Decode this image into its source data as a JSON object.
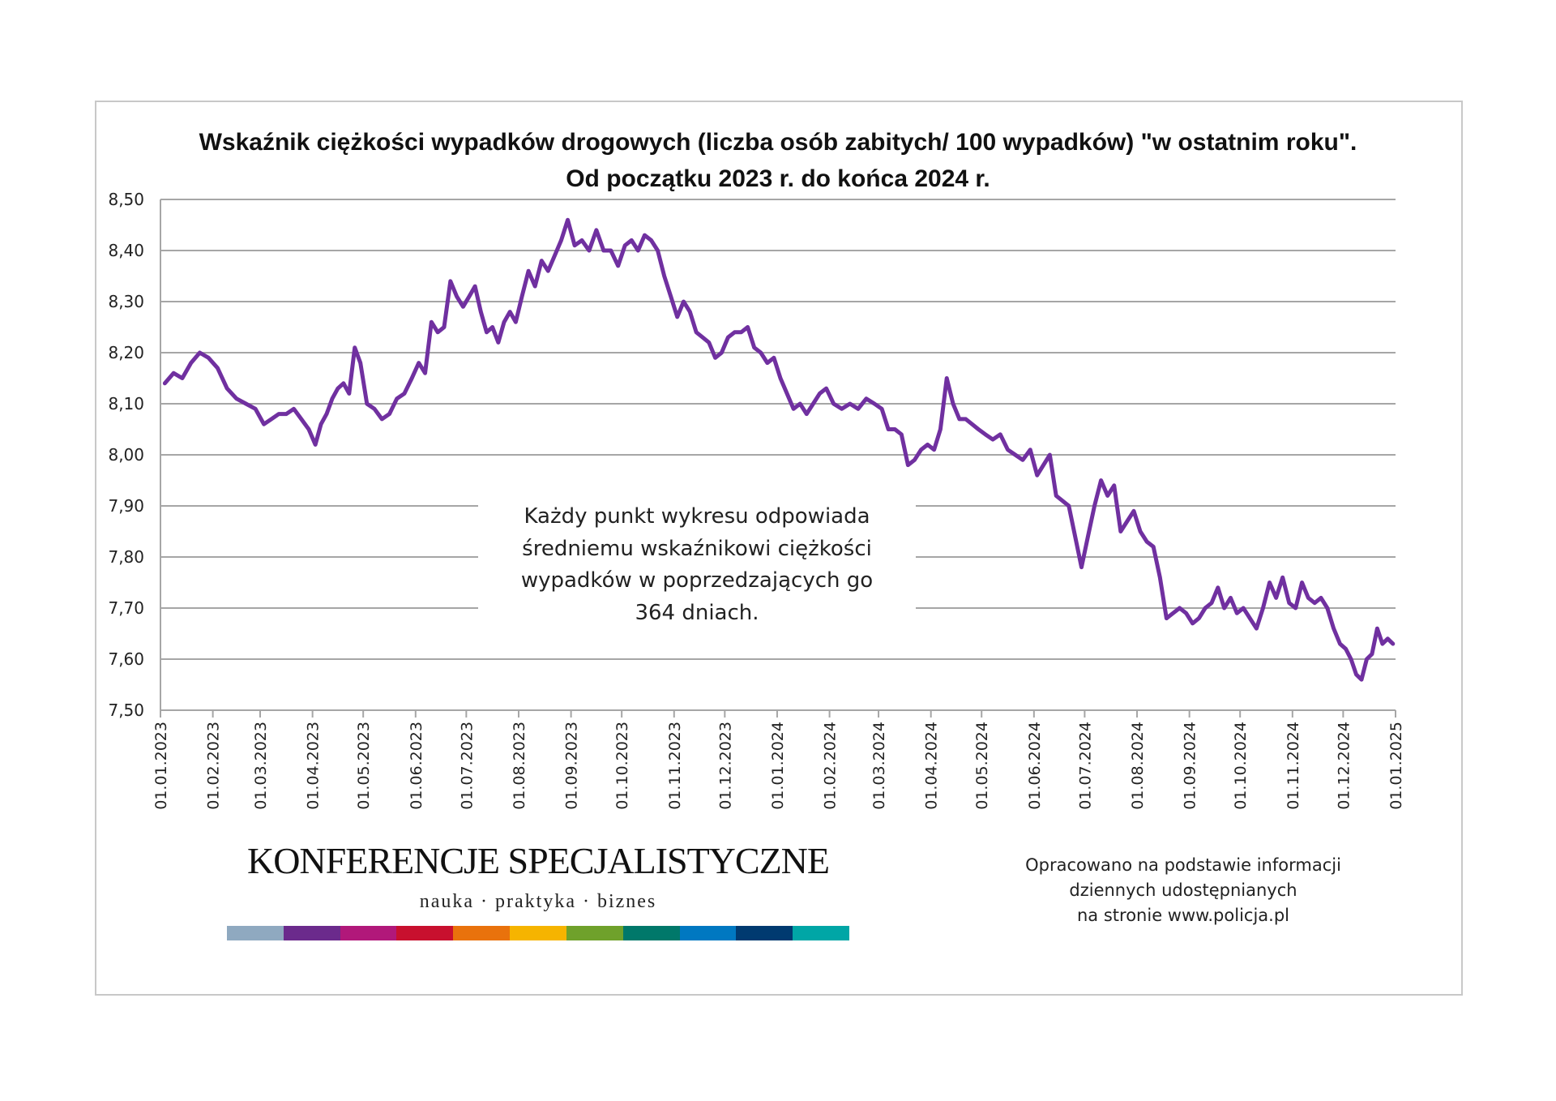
{
  "chart_data": {
    "type": "line",
    "title": "Wskaźnik ciężkości wypadków drogowych (liczba osób zabitych/ 100 wypadków) \"w ostatnim roku\".",
    "subtitle": "Od początku 2023 r. do końca 2024 r.",
    "xlabel": "",
    "ylabel": "",
    "ylim": [
      7.5,
      8.5
    ],
    "y_ticks": [
      "8,50",
      "8,40",
      "8,30",
      "8,20",
      "8,10",
      "8,00",
      "7,90",
      "7,80",
      "7,70",
      "7,60",
      "7,50"
    ],
    "x_ticks": [
      "01.01.2023",
      "01.02.2023",
      "01.03.2023",
      "01.04.2023",
      "01.05.2023",
      "01.06.2023",
      "01.07.2023",
      "01.08.2023",
      "01.09.2023",
      "01.10.2023",
      "01.11.2023",
      "01.12.2023",
      "01.01.2024",
      "01.02.2024",
      "01.03.2024",
      "01.04.2024",
      "01.05.2024",
      "01.06.2024",
      "01.07.2024",
      "01.08.2024",
      "01.09.2024",
      "01.10.2024",
      "01.11.2024",
      "01.12.2024",
      "01.01.2025"
    ],
    "grid": true,
    "line_color": "#7030a0",
    "series_by_month": [
      [
        8.14,
        8.16,
        8.15,
        8.18,
        8.2,
        8.19
      ],
      [
        8.17,
        8.13,
        8.11,
        8.1,
        8.09
      ],
      [
        8.06,
        8.07,
        8.08,
        8.08,
        8.09,
        8.07,
        8.05
      ],
      [
        8.02,
        8.06,
        8.08,
        8.11,
        8.13,
        8.14,
        8.12,
        8.21,
        8.18
      ],
      [
        8.1,
        8.09,
        8.07,
        8.08,
        8.11,
        8.12,
        8.15
      ],
      [
        8.18,
        8.16,
        8.26,
        8.24,
        8.25,
        8.34,
        8.31,
        8.29
      ],
      [
        8.31,
        8.33,
        8.28,
        8.24,
        8.25,
        8.22,
        8.26,
        8.28,
        8.26
      ],
      [
        8.31,
        8.36,
        8.33,
        8.38,
        8.36,
        8.39,
        8.42,
        8.46
      ],
      [
        8.41,
        8.42,
        8.4,
        8.44,
        8.4,
        8.4,
        8.37
      ],
      [
        8.41,
        8.42,
        8.4,
        8.43,
        8.42,
        8.4,
        8.35,
        8.31
      ],
      [
        8.27,
        8.3,
        8.28,
        8.24,
        8.23,
        8.22,
        8.19,
        8.2
      ],
      [
        8.23,
        8.24,
        8.24,
        8.25,
        8.21,
        8.2,
        8.18,
        8.19
      ],
      [
        8.15,
        8.12,
        8.09,
        8.1,
        8.08,
        8.1,
        8.12,
        8.13
      ],
      [
        8.1,
        8.09,
        8.1,
        8.09,
        8.11,
        8.1
      ],
      [
        8.09,
        8.05,
        8.05,
        8.04,
        7.98,
        7.99,
        8.01,
        8.02
      ],
      [
        8.01,
        8.05,
        8.15,
        8.1,
        8.07,
        8.07,
        8.06,
        8.05
      ],
      [
        8.04,
        8.03,
        8.04,
        8.01,
        8.0,
        7.99,
        8.01
      ],
      [
        7.96,
        7.98,
        8.0,
        7.92,
        7.91,
        7.9,
        7.84,
        7.78
      ],
      [
        7.84,
        7.9,
        7.95,
        7.92,
        7.94,
        7.85,
        7.87,
        7.89
      ],
      [
        7.85,
        7.83,
        7.82,
        7.76,
        7.68,
        7.69,
        7.7,
        7.69
      ],
      [
        7.67,
        7.68,
        7.7,
        7.71,
        7.74,
        7.7,
        7.72,
        7.69
      ],
      [
        7.7,
        7.68,
        7.66,
        7.7,
        7.75,
        7.72,
        7.76,
        7.71
      ],
      [
        7.7,
        7.75,
        7.72,
        7.71,
        7.72,
        7.7,
        7.66,
        7.63
      ],
      [
        7.62,
        7.6,
        7.57,
        7.56,
        7.6,
        7.61,
        7.66,
        7.63,
        7.64,
        7.63
      ]
    ]
  },
  "annotation": {
    "lines": [
      "Każdy punkt wykresu odpowiada",
      "średniemu wskaźnikowi ciężkości",
      "wypadków w poprzedzających go",
      "364 dniach."
    ]
  },
  "logo": {
    "name": "KONFERENCJE SPECJALISTYCZNE",
    "tagline": "nauka · praktyka · biznes",
    "colors": [
      "#8fa9c0",
      "#6b2a8c",
      "#b1187a",
      "#c8102e",
      "#e9720c",
      "#f6b400",
      "#6fa12b",
      "#00786a",
      "#0078c1",
      "#003a70",
      "#00a6a6"
    ]
  },
  "source": {
    "lines": [
      "Opracowano na podstawie informacji",
      "dziennych udostępnianych",
      "na stronie www.policja.pl"
    ]
  }
}
